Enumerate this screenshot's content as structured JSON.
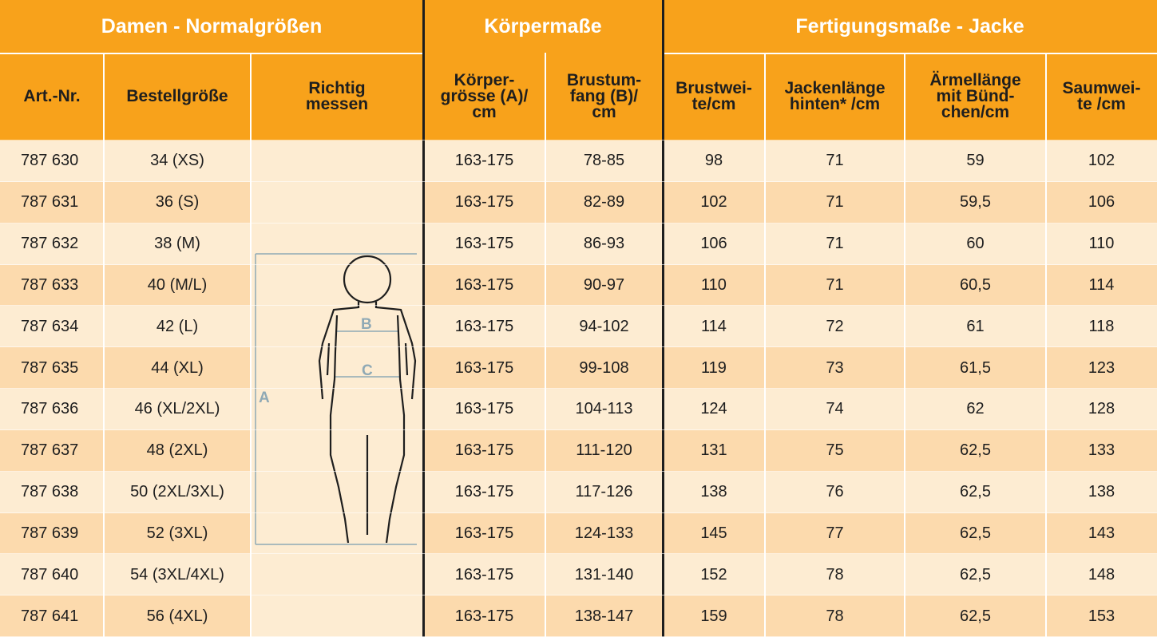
{
  "table": {
    "groups": [
      "Damen - Normalgrößen",
      "Körpermaße",
      "Fertigungsmaße - Jacke"
    ],
    "columns": [
      [
        "Art.-Nr."
      ],
      [
        "Bestellgröße"
      ],
      [
        "Richtig",
        "messen"
      ],
      [
        "Körper-",
        "grösse (A)/",
        "cm"
      ],
      [
        "Brustum-",
        "fang  (B)/",
        "cm"
      ],
      [
        "Brustwei-",
        "te/cm"
      ],
      [
        "Jackenlänge",
        "hinten* /cm"
      ],
      [
        "Ärmellänge",
        "mit Bünd-",
        "chen/cm"
      ],
      [
        "Saumwei-",
        "te /cm"
      ]
    ],
    "rows": [
      [
        "787 630",
        "34 (XS)",
        "163-175",
        "78-85",
        "98",
        "71",
        "59",
        "102"
      ],
      [
        "787 631",
        "36 (S)",
        "163-175",
        "82-89",
        "102",
        "71",
        "59,5",
        "106"
      ],
      [
        "787 632",
        "38 (M)",
        "163-175",
        "86-93",
        "106",
        "71",
        "60",
        "110"
      ],
      [
        "787 633",
        "40 (M/L)",
        "163-175",
        "90-97",
        "110",
        "71",
        "60,5",
        "114"
      ],
      [
        "787 634",
        "42 (L)",
        "163-175",
        "94-102",
        "114",
        "72",
        "61",
        "118"
      ],
      [
        "787 635",
        "44 (XL)",
        "163-175",
        "99-108",
        "119",
        "73",
        "61,5",
        "123"
      ],
      [
        "787 636",
        "46 (XL/2XL)",
        "163-175",
        "104-113",
        "124",
        "74",
        "62",
        "128"
      ],
      [
        "787 637",
        "48 (2XL)",
        "163-175",
        "111-120",
        "131",
        "75",
        "62,5",
        "133"
      ],
      [
        "787 638",
        "50 (2XL/3XL)",
        "163-175",
        "117-126",
        "138",
        "76",
        "62,5",
        "138"
      ],
      [
        "787 639",
        "52 (3XL)",
        "163-175",
        "124-133",
        "145",
        "77",
        "62,5",
        "143"
      ],
      [
        "787 640",
        "54 (3XL/4XL)",
        "163-175",
        "131-140",
        "152",
        "78",
        "62,5",
        "148"
      ],
      [
        "787 641",
        "56 (4XL)",
        "163-175",
        "138-147",
        "159",
        "78",
        "62,5",
        "153"
      ]
    ],
    "figure_labels": [
      "A",
      "B",
      "C"
    ]
  }
}
